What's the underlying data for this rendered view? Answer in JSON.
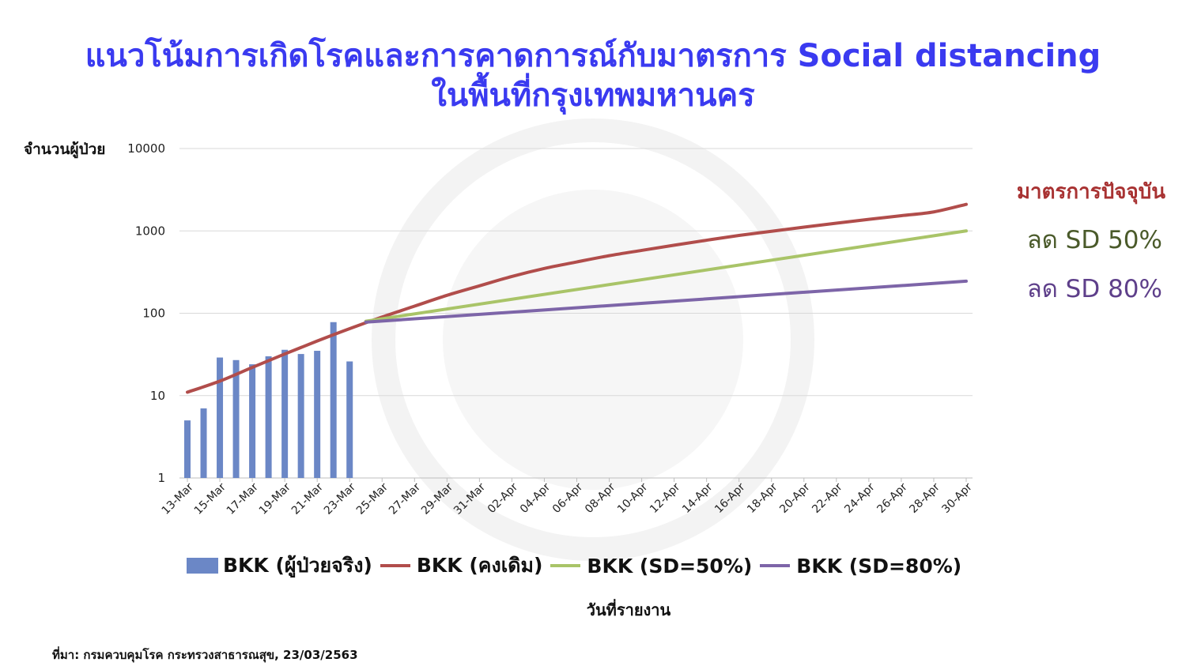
{
  "title": {
    "line1": "แนวโน้มการเกิดโรคและการคาดการณ์กับมาตรการ Social distancing",
    "line2": "ในพื้นที่กรุงเทพมหานคร"
  },
  "source": "ที่มา: กรมควบคุมโรค กระทรวงสาธารณสุข, 23/03/2563",
  "annotations": [
    {
      "key": "current",
      "text": "มาตรการปัจจุบัน",
      "color": "#a83232"
    },
    {
      "key": "sd50",
      "text": "ลด SD 50%",
      "color": "#4a5a2a"
    },
    {
      "key": "sd80",
      "text": "ลด SD 80%",
      "color": "#5e3f8a"
    }
  ],
  "chart_data": {
    "type": "bar+line",
    "ylabel": "จำนวนผู้ป่วย",
    "xlabel": "วันที่รายงาน",
    "y_scale": "log",
    "ylim": [
      1,
      10000
    ],
    "y_ticks": [
      1,
      10,
      100,
      1000,
      10000
    ],
    "x_range": [
      "13-Mar",
      "30-Apr"
    ],
    "x_ticks": [
      "13-Mar",
      "15-Mar",
      "17-Mar",
      "19-Mar",
      "21-Mar",
      "23-Mar",
      "25-Mar",
      "27-Mar",
      "29-Mar",
      "31-Mar",
      "02-Apr",
      "04-Apr",
      "06-Apr",
      "08-Apr",
      "10-Apr",
      "12-Apr",
      "14-Apr",
      "16-Apr",
      "18-Apr",
      "20-Apr",
      "22-Apr",
      "24-Apr",
      "26-Apr",
      "28-Apr",
      "30-Apr"
    ],
    "grid": true,
    "legend_position": "bottom",
    "series": [
      {
        "name": "BKK (ผู้ป่วยจริง)",
        "type": "bar",
        "color": "#6b87c6",
        "x": [
          "13-Mar",
          "14-Mar",
          "15-Mar",
          "16-Mar",
          "17-Mar",
          "18-Mar",
          "19-Mar",
          "20-Mar",
          "21-Mar",
          "22-Mar",
          "23-Mar"
        ],
        "values": [
          5,
          7,
          29,
          27,
          24,
          30,
          36,
          32,
          35,
          78,
          26
        ]
      },
      {
        "name": "BKK (คงเดิม)",
        "type": "line",
        "color": "#b14d4b",
        "x": [
          "13-Mar",
          "15-Mar",
          "17-Mar",
          "19-Mar",
          "21-Mar",
          "23-Mar",
          "25-Mar",
          "27-Mar",
          "29-Mar",
          "31-Mar",
          "02-Apr",
          "04-Apr",
          "06-Apr",
          "08-Apr",
          "10-Apr",
          "12-Apr",
          "14-Apr",
          "16-Apr",
          "18-Apr",
          "20-Apr",
          "22-Apr",
          "24-Apr",
          "26-Apr",
          "28-Apr",
          "30-Apr"
        ],
        "values": [
          11,
          15,
          22,
          32,
          46,
          65,
          90,
          122,
          165,
          215,
          280,
          350,
          420,
          500,
          580,
          670,
          770,
          880,
          990,
          1110,
          1240,
          1380,
          1530,
          1700,
          2100
        ]
      },
      {
        "name": "BKK (SD=50%)",
        "type": "line",
        "color": "#a9c468",
        "x": [
          "24-Mar",
          "30-Apr"
        ],
        "values": [
          80,
          1000
        ]
      },
      {
        "name": "BKK (SD=80%)",
        "type": "line",
        "color": "#7d65a8",
        "x": [
          "24-Mar",
          "30-Apr"
        ],
        "values": [
          78,
          245
        ]
      }
    ]
  }
}
